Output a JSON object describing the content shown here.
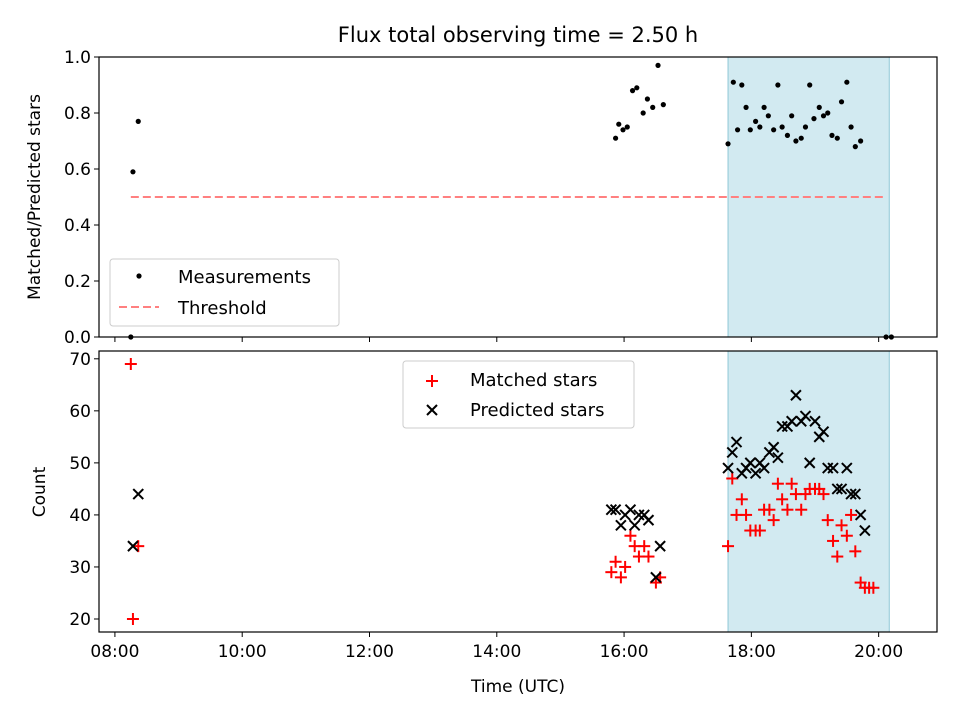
{
  "figure": {
    "title": "Flux total observing time = 2.50 h"
  },
  "chart_data": [
    {
      "type": "scatter",
      "ylabel": "Matched/Predicted stars",
      "xlim": [
        "07:45",
        "20:55"
      ],
      "ylim": [
        0,
        1.0
      ],
      "yticks": [
        "0.0",
        "0.2",
        "0.4",
        "0.6",
        "0.8",
        "1.0"
      ],
      "shaded_interval": [
        "17:38",
        "20:10"
      ],
      "shade_color": "#add8e6",
      "legend_position": "lower-left",
      "series": [
        {
          "name": "Measurements",
          "marker": "dot",
          "color": "#000000",
          "points": [
            [
              "08:15",
              0.0
            ],
            [
              "08:17",
              0.59
            ],
            [
              "08:22",
              0.77
            ],
            [
              "15:52",
              0.71
            ],
            [
              "15:55",
              0.76
            ],
            [
              "15:59",
              0.74
            ],
            [
              "16:03",
              0.75
            ],
            [
              "16:08",
              0.88
            ],
            [
              "16:12",
              0.89
            ],
            [
              "16:18",
              0.8
            ],
            [
              "16:22",
              0.85
            ],
            [
              "16:27",
              0.82
            ],
            [
              "16:32",
              0.97
            ],
            [
              "16:37",
              0.83
            ],
            [
              "17:38",
              0.69
            ],
            [
              "17:43",
              0.91
            ],
            [
              "17:47",
              0.74
            ],
            [
              "17:51",
              0.9
            ],
            [
              "17:55",
              0.82
            ],
            [
              "17:59",
              0.74
            ],
            [
              "18:04",
              0.77
            ],
            [
              "18:08",
              0.75
            ],
            [
              "18:12",
              0.82
            ],
            [
              "18:16",
              0.79
            ],
            [
              "18:21",
              0.74
            ],
            [
              "18:25",
              0.9
            ],
            [
              "18:29",
              0.75
            ],
            [
              "18:34",
              0.72
            ],
            [
              "18:38",
              0.79
            ],
            [
              "18:42",
              0.7
            ],
            [
              "18:47",
              0.71
            ],
            [
              "18:51",
              0.75
            ],
            [
              "18:55",
              0.9
            ],
            [
              "18:59",
              0.78
            ],
            [
              "19:04",
              0.82
            ],
            [
              "19:08",
              0.79
            ],
            [
              "19:12",
              0.8
            ],
            [
              "19:16",
              0.72
            ],
            [
              "19:21",
              0.71
            ],
            [
              "19:25",
              0.84
            ],
            [
              "19:30",
              0.91
            ],
            [
              "19:34",
              0.75
            ],
            [
              "19:38",
              0.68
            ],
            [
              "19:43",
              0.7
            ],
            [
              "20:07",
              0.0
            ],
            [
              "20:12",
              0.0
            ]
          ]
        },
        {
          "name": "Threshold",
          "line": "dashed",
          "color": "#ff8080",
          "points": [
            [
              "08:15",
              0.5
            ],
            [
              "20:05",
              0.5
            ]
          ]
        }
      ]
    },
    {
      "type": "scatter",
      "xlabel": "Time (UTC)",
      "ylabel": "Count",
      "xlim": [
        "07:45",
        "20:55"
      ],
      "ylim": [
        17.5,
        71.5
      ],
      "yticks": [
        "20",
        "30",
        "40",
        "50",
        "60",
        "70"
      ],
      "xticks": [
        "08:00",
        "10:00",
        "12:00",
        "14:00",
        "16:00",
        "18:00",
        "20:00"
      ],
      "shaded_interval": [
        "17:38",
        "20:10"
      ],
      "shade_color": "#add8e6",
      "legend_position": "upper-center",
      "series": [
        {
          "name": "Matched stars",
          "marker": "plus",
          "color": "#ff0000",
          "points": [
            [
              "08:15",
              69
            ],
            [
              "08:17",
              20
            ],
            [
              "08:22",
              34
            ],
            [
              "15:48",
              29
            ],
            [
              "15:52",
              31
            ],
            [
              "15:57",
              28
            ],
            [
              "16:01",
              30
            ],
            [
              "16:06",
              36
            ],
            [
              "16:10",
              34
            ],
            [
              "16:14",
              32
            ],
            [
              "16:19",
              34
            ],
            [
              "16:23",
              32
            ],
            [
              "16:30",
              27
            ],
            [
              "16:34",
              28
            ],
            [
              "17:38",
              34
            ],
            [
              "17:42",
              47
            ],
            [
              "17:46",
              40
            ],
            [
              "17:51",
              43
            ],
            [
              "17:55",
              40
            ],
            [
              "17:59",
              37
            ],
            [
              "18:04",
              37
            ],
            [
              "18:08",
              37
            ],
            [
              "18:12",
              41
            ],
            [
              "18:17",
              41
            ],
            [
              "18:21",
              39
            ],
            [
              "18:25",
              46
            ],
            [
              "18:29",
              43
            ],
            [
              "18:34",
              41
            ],
            [
              "18:38",
              46
            ],
            [
              "18:42",
              44
            ],
            [
              "18:47",
              41
            ],
            [
              "18:51",
              44
            ],
            [
              "18:55",
              45
            ],
            [
              "19:00",
              45
            ],
            [
              "19:04",
              45
            ],
            [
              "19:08",
              44
            ],
            [
              "19:12",
              39
            ],
            [
              "19:17",
              35
            ],
            [
              "19:21",
              32
            ],
            [
              "19:25",
              38
            ],
            [
              "19:30",
              36
            ],
            [
              "19:34",
              40
            ],
            [
              "19:38",
              33
            ],
            [
              "19:43",
              27
            ],
            [
              "19:47",
              26
            ],
            [
              "19:51",
              26
            ],
            [
              "19:55",
              26
            ]
          ]
        },
        {
          "name": "Predicted stars",
          "marker": "cross",
          "color": "#000000",
          "points": [
            [
              "08:17",
              34
            ],
            [
              "08:22",
              44
            ],
            [
              "15:48",
              41
            ],
            [
              "15:52",
              41
            ],
            [
              "15:57",
              38
            ],
            [
              "16:01",
              40
            ],
            [
              "16:06",
              41
            ],
            [
              "16:10",
              38
            ],
            [
              "16:14",
              40
            ],
            [
              "16:19",
              40
            ],
            [
              "16:23",
              39
            ],
            [
              "16:30",
              28
            ],
            [
              "16:34",
              34
            ],
            [
              "17:38",
              49
            ],
            [
              "17:42",
              52
            ],
            [
              "17:46",
              54
            ],
            [
              "17:51",
              48
            ],
            [
              "17:55",
              49
            ],
            [
              "17:59",
              50
            ],
            [
              "18:04",
              48
            ],
            [
              "18:08",
              50
            ],
            [
              "18:12",
              49
            ],
            [
              "18:17",
              52
            ],
            [
              "18:21",
              53
            ],
            [
              "18:25",
              51
            ],
            [
              "18:29",
              57
            ],
            [
              "18:34",
              57
            ],
            [
              "18:38",
              58
            ],
            [
              "18:42",
              63
            ],
            [
              "18:47",
              58
            ],
            [
              "18:51",
              59
            ],
            [
              "18:55",
              50
            ],
            [
              "19:00",
              58
            ],
            [
              "19:04",
              55
            ],
            [
              "19:08",
              56
            ],
            [
              "19:12",
              49
            ],
            [
              "19:17",
              49
            ],
            [
              "19:21",
              45
            ],
            [
              "19:25",
              45
            ],
            [
              "19:30",
              49
            ],
            [
              "19:34",
              44
            ],
            [
              "19:38",
              44
            ],
            [
              "19:43",
              40
            ],
            [
              "19:47",
              37
            ]
          ]
        }
      ]
    }
  ]
}
